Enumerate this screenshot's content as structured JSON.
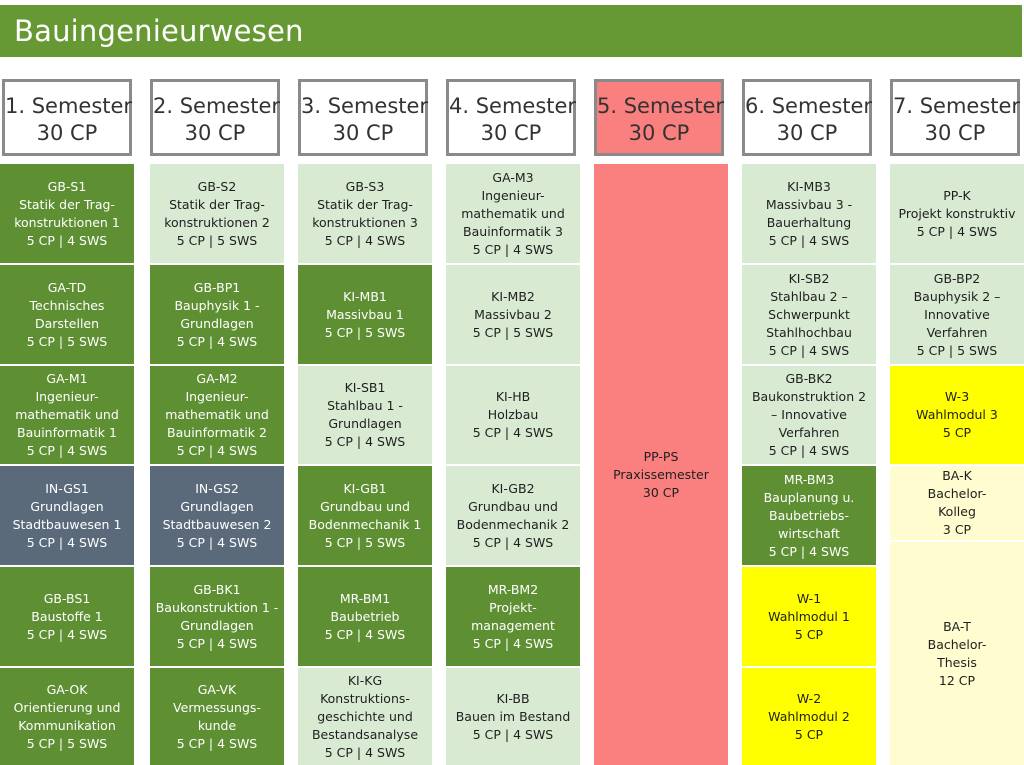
{
  "title": "Bauingenieurwesen",
  "colors": {
    "title_bar": "#669933",
    "dark_green": "#5e8f33",
    "light_green": "#d9ead3",
    "slate": "#5a6a7b",
    "yellow": "#ffff00",
    "cream": "#fffccf",
    "red": "#fa7f7f"
  },
  "semesters": [
    {
      "name": "1. Semester",
      "cp": "30 CP"
    },
    {
      "name": "2. Semester",
      "cp": "30 CP"
    },
    {
      "name": "3. Semester",
      "cp": "30 CP"
    },
    {
      "name": "4. Semester",
      "cp": "30 CP"
    },
    {
      "name": "5. Semester",
      "cp": "30 CP"
    },
    {
      "name": "6. Semester",
      "cp": "30 CP"
    },
    {
      "name": "7. Semester",
      "cp": "30 CP"
    }
  ],
  "modules": {
    "s1": [
      {
        "lines": [
          "GB-S1",
          "Statik der Trag-",
          "konstruktionen 1",
          "5 CP | 4 SWS"
        ]
      },
      {
        "lines": [
          "GA-TD",
          "Technisches",
          "Darstellen",
          "5 CP | 5 SWS"
        ]
      },
      {
        "lines": [
          "GA-M1",
          "Ingenieur-",
          "mathematik und",
          "Bauinformatik 1",
          "5 CP | 4 SWS"
        ]
      },
      {
        "lines": [
          "IN-GS1",
          "Grundlagen",
          "Stadtbauwesen 1",
          "5 CP | 4 SWS"
        ]
      },
      {
        "lines": [
          "GB-BS1",
          "Baustoffe 1",
          "5 CP | 4 SWS"
        ]
      },
      {
        "lines": [
          "GA-OK",
          "Orientierung und",
          "Kommunikation",
          "5 CP | 5 SWS"
        ]
      }
    ],
    "s2": [
      {
        "lines": [
          "GB-S2",
          "Statik der Trag-",
          "konstruktionen 2",
          "5 CP | 5 SWS"
        ]
      },
      {
        "lines": [
          "GB-BP1",
          "Bauphysik 1 -",
          "Grundlagen",
          "5 CP | 4 SWS"
        ]
      },
      {
        "lines": [
          "GA-M2",
          "Ingenieur-",
          "mathematik und",
          "Bauinformatik 2",
          "5 CP | 4 SWS"
        ]
      },
      {
        "lines": [
          "IN-GS2",
          "Grundlagen",
          "Stadtbauwesen 2",
          "5 CP | 4 SWS"
        ]
      },
      {
        "lines": [
          "GB-BK1",
          "Baukonstruktion 1 -",
          "Grundlagen",
          "5 CP | 4 SWS"
        ]
      },
      {
        "lines": [
          "GA-VK",
          "Vermessungs-",
          "kunde",
          "5 CP | 4 SWS"
        ]
      }
    ],
    "s3": [
      {
        "lines": [
          "GB-S3",
          "Statik der Trag-",
          "konstruktionen 3",
          "5 CP | 4 SWS"
        ]
      },
      {
        "lines": [
          "KI-MB1",
          "Massivbau 1",
          "5 CP | 5 SWS"
        ]
      },
      {
        "lines": [
          "KI-SB1",
          "Stahlbau 1 -",
          "Grundlagen",
          "5 CP | 4 SWS"
        ]
      },
      {
        "lines": [
          "KI-GB1",
          "Grundbau und",
          "Bodenmechanik 1",
          "5 CP | 5 SWS"
        ]
      },
      {
        "lines": [
          "MR-BM1",
          "Baubetrieb",
          "5 CP | 4 SWS"
        ]
      },
      {
        "lines": [
          "KI-KG",
          "Konstruktions-",
          "geschichte und",
          "Bestandsanalyse",
          "5 CP | 4 SWS"
        ]
      }
    ],
    "s4": [
      {
        "lines": [
          "GA-M3",
          "Ingenieur-",
          "mathematik und",
          "Bauinformatik 3",
          "5 CP | 4 SWS"
        ]
      },
      {
        "lines": [
          "KI-MB2",
          "Massivbau 2",
          "5 CP | 5 SWS"
        ]
      },
      {
        "lines": [
          "KI-HB",
          "Holzbau",
          "5 CP | 4 SWS"
        ]
      },
      {
        "lines": [
          "KI-GB2",
          "Grundbau und",
          "Bodenmechanik 2",
          "5 CP | 4 SWS"
        ]
      },
      {
        "lines": [
          "MR-BM2",
          "Projekt-",
          "management",
          "5 CP | 4 SWS"
        ]
      },
      {
        "lines": [
          "KI-BB",
          "Bauen im Bestand",
          "5 CP | 4 SWS"
        ]
      }
    ],
    "s5": [
      {
        "lines": [
          "PP-PS",
          "Praxissemester",
          "30 CP"
        ]
      }
    ],
    "s6": [
      {
        "lines": [
          "KI-MB3",
          "Massivbau 3 -",
          "Bauerhaltung",
          "5 CP | 4 SWS"
        ]
      },
      {
        "lines": [
          "KI-SB2",
          "Stahlbau 2 –",
          "Schwerpunkt",
          "Stahlhochbau",
          "5 CP | 4 SWS"
        ]
      },
      {
        "lines": [
          "GB-BK2",
          "Baukonstruktion 2",
          "– Innovative",
          "Verfahren",
          "5 CP | 4 SWS"
        ]
      },
      {
        "lines": [
          "MR-BM3",
          "Bauplanung u.",
          "Baubetriebs-",
          "wirtschaft",
          "5 CP | 4 SWS"
        ]
      },
      {
        "lines": [
          "W-1",
          "Wahlmodul 1",
          "5 CP"
        ]
      },
      {
        "lines": [
          "W-2",
          "Wahlmodul 2",
          "5 CP"
        ]
      }
    ],
    "s7": [
      {
        "lines": [
          "PP-K",
          "Projekt konstruktiv",
          "5 CP | 4 SWS"
        ]
      },
      {
        "lines": [
          "GB-BP2",
          "Bauphysik 2 –",
          "Innovative",
          "Verfahren",
          "5 CP | 5 SWS"
        ]
      },
      {
        "lines": [
          "W-3",
          "Wahlmodul 3",
          "5 CP"
        ]
      },
      {
        "lines": [
          "BA-K",
          "Bachelor-",
          "Kolleg",
          "3 CP"
        ]
      },
      {
        "lines": [
          "BA-T",
          "Bachelor-",
          "Thesis",
          "12 CP"
        ]
      }
    ]
  }
}
